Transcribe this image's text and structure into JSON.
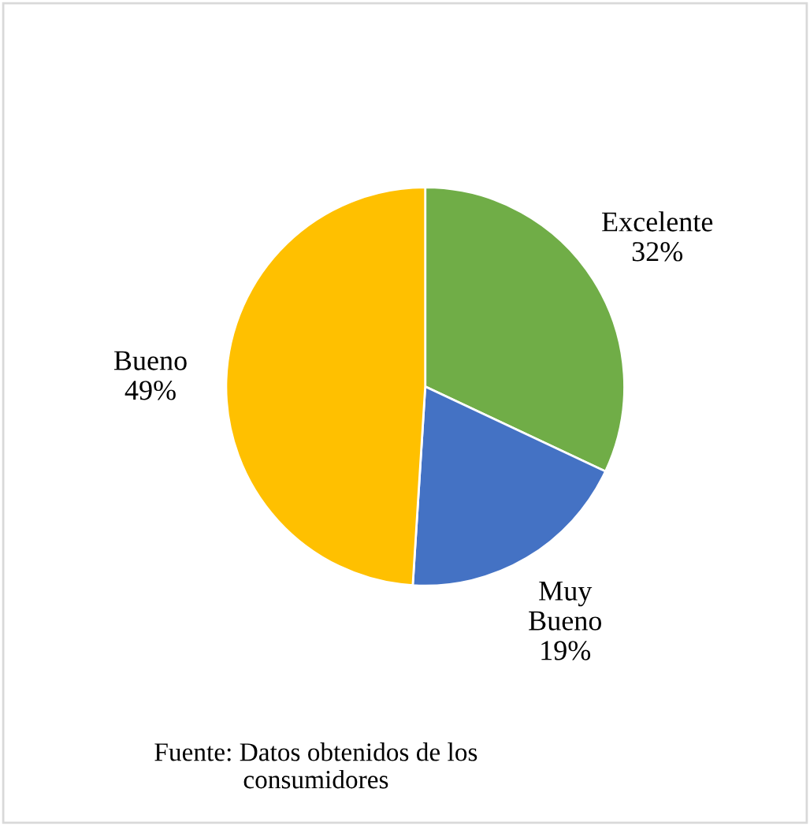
{
  "chart_data": {
    "type": "pie",
    "categories": [
      "Excelente",
      "Muy\nBueno",
      "Bueno"
    ],
    "values": [
      32,
      19,
      49
    ],
    "colors": [
      "#70ad47",
      "#4472c4",
      "#ffc000"
    ],
    "value_labels": [
      "32%",
      "19%",
      "49%"
    ],
    "legend": false,
    "annotations": [
      "Fuente: Datos obtenidos de los\nconsumidores"
    ]
  }
}
